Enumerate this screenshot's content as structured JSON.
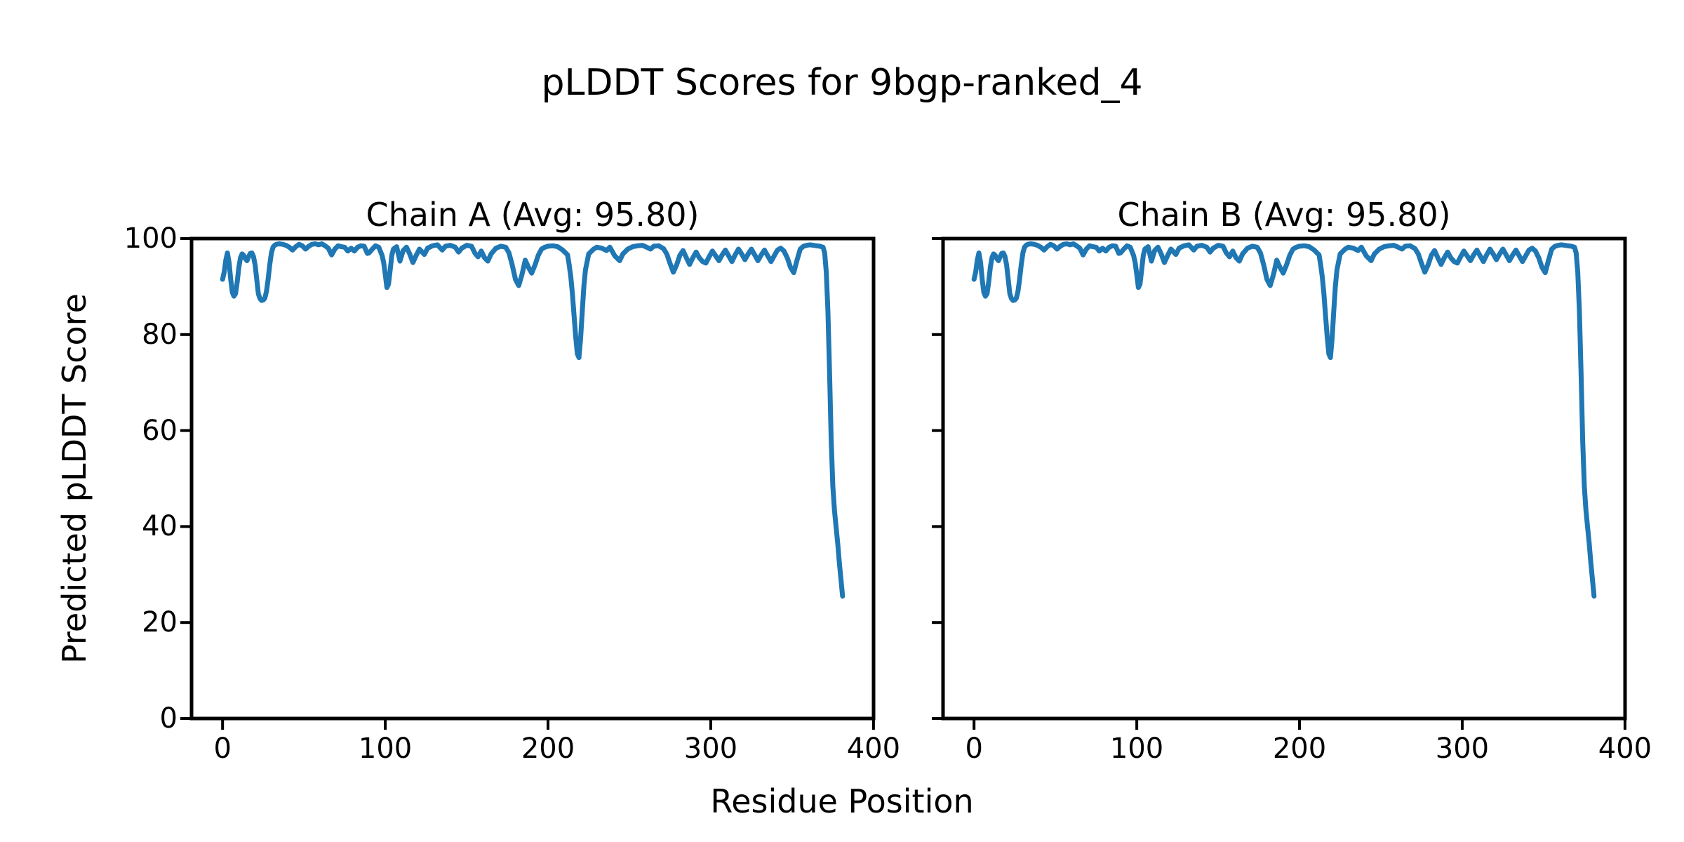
{
  "chart_data": {
    "type": "line",
    "suptitle": "pLDDT Scores for 9bgp-ranked_4",
    "xlabel": "Residue Position",
    "ylabel": "Predicted pLDDT Score",
    "xlim": [
      -19.05,
      400.05
    ],
    "ylim": [
      0,
      100
    ],
    "xticks": [
      0,
      100,
      200,
      300,
      400
    ],
    "yticks": [
      0,
      20,
      40,
      60,
      80,
      100
    ],
    "grid": false,
    "line_color": "#1f77b4",
    "frame_color": "#000000",
    "background_color": "#ffffff",
    "subplots": [
      {
        "title": "Chain A (Avg: 95.80)",
        "series_name": "Chain A",
        "avg": 95.8
      },
      {
        "title": "Chain B (Avg: 95.80)",
        "series_name": "Chain B",
        "avg": 95.8
      }
    ],
    "x": [
      0,
      1,
      2,
      3,
      4,
      5,
      6,
      7,
      8,
      9,
      10,
      11,
      12,
      13,
      14,
      15,
      16,
      17,
      18,
      19,
      20,
      21,
      22,
      23,
      24,
      25,
      26,
      27,
      28,
      29,
      30,
      31,
      32,
      33,
      35,
      37,
      39,
      41,
      43,
      45,
      47,
      49,
      51,
      53,
      55,
      57,
      59,
      61,
      63,
      65,
      67,
      69,
      71,
      73,
      75,
      77,
      79,
      81,
      83,
      85,
      87,
      89,
      90,
      92,
      94,
      96,
      98,
      99,
      100,
      101,
      102,
      103,
      104,
      105,
      107,
      109,
      111,
      113,
      115,
      117,
      119,
      121,
      124,
      126,
      129,
      132,
      135,
      137,
      140,
      143,
      145,
      147,
      150,
      153,
      155,
      157,
      159,
      161,
      163,
      165,
      168,
      171,
      174,
      176,
      178,
      180,
      182,
      184,
      186,
      188,
      190,
      192,
      194,
      196,
      198,
      200,
      203,
      206,
      209,
      212,
      213,
      214,
      215,
      216,
      217,
      218,
      219,
      220,
      221,
      222,
      223,
      225,
      228,
      230,
      233,
      236,
      238,
      241,
      244,
      246,
      249,
      252,
      255,
      258,
      260,
      263,
      265,
      268,
      271,
      273,
      275,
      277,
      279,
      281,
      283,
      285,
      287,
      289,
      291,
      293,
      295,
      297,
      299,
      301,
      303,
      305,
      307,
      309,
      311,
      313,
      315,
      317,
      319,
      321,
      323,
      325,
      327,
      329,
      331,
      333,
      335,
      337,
      339,
      341,
      343,
      345,
      347,
      349,
      351,
      353,
      355,
      357,
      359,
      361,
      363,
      365,
      367,
      369,
      370,
      371,
      372,
      373,
      374,
      375,
      376,
      377,
      378,
      379,
      380,
      381
    ],
    "y_shared": [
      91.5,
      93.0,
      95.5,
      97.0,
      95.0,
      91.5,
      88.8,
      88.0,
      88.5,
      91.0,
      94.0,
      96.0,
      96.8,
      96.5,
      95.8,
      95.4,
      96.2,
      96.9,
      97.0,
      96.3,
      94.5,
      91.5,
      88.5,
      87.5,
      87.1,
      87.2,
      87.6,
      89.0,
      91.5,
      94.5,
      97.0,
      98.2,
      98.6,
      98.8,
      98.9,
      98.8,
      98.6,
      98.2,
      97.6,
      98.3,
      98.8,
      98.5,
      97.8,
      98.4,
      98.8,
      98.9,
      98.7,
      98.9,
      98.5,
      98.0,
      96.6,
      97.8,
      98.5,
      98.3,
      98.2,
      97.4,
      98.0,
      97.4,
      98.2,
      98.5,
      98.4,
      96.9,
      97.0,
      97.8,
      98.5,
      98.2,
      96.5,
      95.0,
      92.5,
      89.8,
      90.5,
      93.5,
      96.5,
      97.8,
      98.3,
      95.3,
      97.5,
      98.2,
      96.8,
      95.0,
      96.5,
      97.8,
      96.7,
      98.0,
      98.5,
      98.7,
      97.6,
      98.4,
      98.6,
      98.2,
      97.2,
      98.0,
      98.6,
      98.4,
      97.0,
      96.2,
      97.4,
      96.0,
      95.3,
      96.8,
      98.0,
      98.4,
      98.2,
      97.0,
      94.5,
      91.5,
      90.2,
      92.5,
      95.5,
      94.0,
      92.8,
      94.5,
      96.5,
      97.8,
      98.2,
      98.4,
      98.5,
      98.3,
      97.6,
      96.6,
      94.5,
      92.0,
      88.5,
      84.0,
      79.5,
      76.0,
      75.2,
      79.0,
      84.5,
      90.0,
      93.5,
      96.8,
      97.8,
      98.2,
      98.0,
      97.5,
      98.2,
      96.4,
      95.4,
      96.8,
      97.8,
      98.3,
      98.5,
      98.6,
      98.3,
      97.8,
      98.4,
      98.5,
      97.9,
      96.8,
      94.8,
      93.0,
      94.5,
      96.5,
      97.5,
      96.0,
      94.6,
      96.0,
      97.2,
      96.0,
      95.2,
      94.9,
      96.2,
      97.4,
      96.4,
      95.4,
      96.6,
      97.6,
      96.4,
      95.2,
      96.6,
      97.8,
      96.8,
      95.6,
      96.8,
      97.8,
      96.6,
      95.4,
      96.6,
      97.6,
      96.4,
      95.2,
      96.4,
      97.6,
      98.0,
      97.4,
      96.0,
      94.0,
      92.9,
      95.5,
      97.8,
      98.4,
      98.6,
      98.7,
      98.6,
      98.5,
      98.4,
      98.2,
      97.0,
      93.0,
      85.0,
      72.0,
      58.0,
      48.5,
      43.5,
      40.0,
      36.5,
      32.5,
      29.0,
      25.5
    ]
  }
}
